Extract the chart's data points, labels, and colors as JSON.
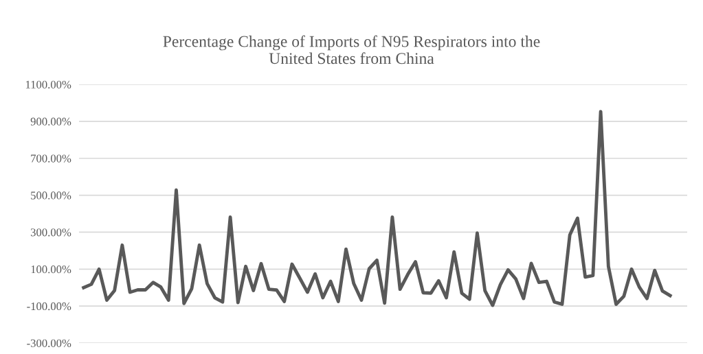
{
  "chart_data": {
    "type": "line",
    "title": "Percentage Change of Imports of N95 Respirators into the\nUnited States from China",
    "categories": [
      null,
      null,
      null,
      null,
      null,
      null,
      null,
      null,
      null,
      null,
      null,
      null,
      null,
      null,
      null,
      null,
      null,
      null,
      null,
      null,
      null,
      null,
      null,
      null,
      null,
      null,
      null,
      null,
      null,
      null,
      null,
      null,
      null,
      null,
      null,
      null,
      null,
      null,
      null,
      null,
      null,
      null,
      null,
      null,
      null,
      null,
      null,
      null,
      null,
      null,
      null,
      null,
      null,
      null,
      null,
      null,
      null,
      null,
      null,
      null,
      null,
      null,
      null,
      null,
      null,
      null,
      null,
      null,
      null,
      null,
      null,
      null,
      null,
      null,
      null,
      null,
      null
    ],
    "series": [
      {
        "color": "#595959",
        "values": [
          0,
          18,
          100,
          -68,
          -16,
          230,
          -25,
          -12,
          -12,
          28,
          3,
          -68,
          528,
          -86,
          -6,
          230,
          22,
          -55,
          -78,
          382,
          -81,
          115,
          -16,
          130,
          -9,
          -13,
          -75,
          127,
          52,
          -25,
          74,
          -55,
          34,
          -75,
          208,
          22,
          -68,
          102,
          148,
          -84,
          382,
          -9,
          71,
          140,
          -28,
          -30,
          37,
          -55,
          193,
          -30,
          -63,
          295,
          -16,
          -96,
          16,
          96,
          47,
          -59,
          131,
          28,
          34,
          -78,
          -90,
          285,
          376,
          57,
          65,
          953,
          115,
          -90,
          -47,
          100,
          3,
          -59,
          93,
          -18,
          -43
        ]
      }
    ],
    "ylim": [
      -300,
      1100
    ],
    "yticks": [
      {
        "value": -300,
        "label": "-300.00%"
      },
      {
        "value": -100,
        "label": "-100.00%"
      },
      {
        "value": 100,
        "label": "100.00%"
      },
      {
        "value": 300,
        "label": "300.00%"
      },
      {
        "value": 500,
        "label": "500.00%"
      },
      {
        "value": 700,
        "label": "700.00%"
      },
      {
        "value": 900,
        "label": "900.00%"
      },
      {
        "value": 1100,
        "label": "1100.00%"
      }
    ],
    "grid": "y",
    "legend": false,
    "marker": "none",
    "line_style": "solid"
  }
}
